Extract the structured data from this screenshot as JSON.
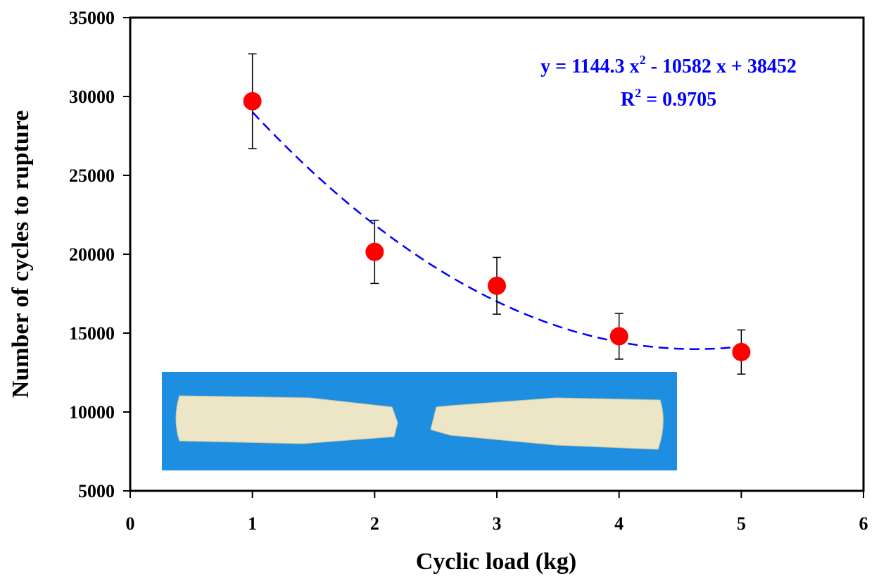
{
  "chart_data": {
    "type": "scatter",
    "xlabel": "Cyclic load (kg)",
    "ylabel": "Number of cycles to rupture",
    "x": [
      1,
      2,
      3,
      4,
      5
    ],
    "values": [
      29700,
      20150,
      18000,
      14800,
      13800
    ],
    "errors": [
      3000,
      2000,
      1800,
      1450,
      1400
    ],
    "color": "#ff0000",
    "xlim": [
      0,
      6
    ],
    "xticks": [
      0,
      1,
      2,
      3,
      4,
      5,
      6
    ],
    "ylim": [
      5000,
      35000
    ],
    "yticks": [
      5000,
      10000,
      15000,
      20000,
      25000,
      30000,
      35000
    ],
    "trendline": {
      "coefficients": [
        1144.3,
        -10582,
        38452
      ],
      "xrange": [
        1,
        5
      ],
      "color": "#0000ff"
    },
    "equation": [
      "y = 1144.3 x",
      "2",
      " - 10582 x + 38452"
    ],
    "r_squared": [
      "R",
      "2",
      " = 0.9705"
    ]
  }
}
